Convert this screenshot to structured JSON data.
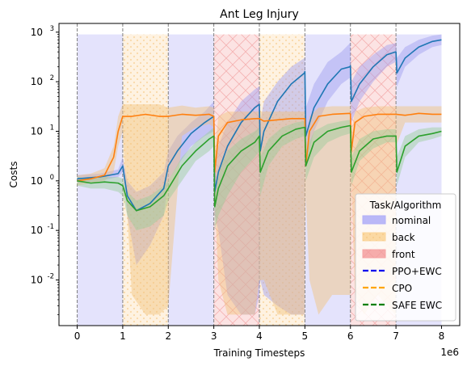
{
  "chart_data": {
    "type": "line",
    "title": "Ant Leg Injury",
    "xlabel": "Training Timesteps",
    "ylabel": "Costs",
    "x_offset_label": "1e6",
    "x_unit": 1000000,
    "xlim": [
      -0.4,
      8.4
    ],
    "ylim": [
      0.0012,
      1500
    ],
    "yscale": "log",
    "x_ticks": [
      0,
      1,
      2,
      3,
      4,
      5,
      6,
      7,
      8
    ],
    "y_ticks": [
      {
        "value": 0.01,
        "label": "10^-2"
      },
      {
        "value": 0.1,
        "label": "10^-1"
      },
      {
        "value": 1,
        "label": "10^0"
      },
      {
        "value": 10,
        "label": "10^1"
      },
      {
        "value": 100,
        "label": "10^2"
      },
      {
        "value": 1000,
        "label": "10^3"
      }
    ],
    "task_boundaries": [
      0,
      1,
      2,
      3,
      4,
      5,
      6,
      7
    ],
    "task_regions": [
      {
        "task": "nominal",
        "x0": 0,
        "x1": 1
      },
      {
        "task": "back",
        "x0": 1,
        "x1": 2
      },
      {
        "task": "nominal",
        "x0": 2,
        "x1": 3
      },
      {
        "task": "front",
        "x0": 3,
        "x1": 4
      },
      {
        "task": "back",
        "x0": 4,
        "x1": 5
      },
      {
        "task": "nominal",
        "x0": 5,
        "x1": 6
      },
      {
        "task": "front",
        "x0": 6,
        "x1": 7
      },
      {
        "task": "nominal",
        "x0": 7,
        "x1": 8
      }
    ],
    "region_top": 900,
    "legend": {
      "title": "Task/Algorithm",
      "placement": "lower right",
      "tasks": [
        {
          "name": "nominal",
          "color": "#b3b0f7"
        },
        {
          "name": "back",
          "color": "#fbd59a"
        },
        {
          "name": "front",
          "color": "#f5a3a3"
        }
      ],
      "algorithms": [
        {
          "name": "PPO+EWC",
          "color": "#0000ee"
        },
        {
          "name": "CPO",
          "color": "#ffa500"
        },
        {
          "name": "SAFE EWC",
          "color": "#007f00"
        }
      ]
    },
    "series": [
      {
        "color": "#1f77b4",
        "band_color": "#9d9bf0",
        "x": [
          0,
          0.5,
          0.9,
          1.0,
          1.1,
          1.3,
          1.6,
          1.9,
          2.0,
          2.2,
          2.5,
          2.8,
          3.0,
          3.02,
          3.1,
          3.3,
          3.6,
          3.9,
          4.0,
          4.02,
          4.1,
          4.4,
          4.7,
          4.99,
          5.0,
          5.02,
          5.2,
          5.5,
          5.8,
          5.99,
          6.0,
          6.02,
          6.2,
          6.5,
          6.8,
          6.99,
          7.0,
          7.02,
          7.2,
          7.5,
          7.8,
          8.0
        ],
        "y": [
          1.1,
          1.2,
          1.4,
          2.0,
          0.5,
          0.25,
          0.35,
          0.7,
          2.0,
          4,
          9,
          15,
          20,
          0.6,
          1.5,
          5,
          15,
          30,
          35,
          4,
          10,
          40,
          90,
          150,
          160,
          8,
          30,
          90,
          180,
          200,
          210,
          40,
          90,
          200,
          350,
          400,
          400,
          150,
          300,
          500,
          650,
          700
        ],
        "lower": [
          0.9,
          1.0,
          1.2,
          1.5,
          0.2,
          0.02,
          0.05,
          0.2,
          1.0,
          2,
          5,
          8,
          10,
          0.2,
          0.1,
          0.005,
          0.002,
          0.002,
          0.005,
          0.01,
          0.005,
          0.003,
          0.002,
          0.002,
          20,
          2,
          10,
          40,
          90,
          120,
          150,
          15,
          40,
          100,
          200,
          250,
          250,
          80,
          200,
          350,
          500,
          550
        ],
        "upper": [
          1.3,
          1.4,
          1.7,
          3.0,
          1.0,
          0.6,
          0.8,
          1.5,
          4,
          8,
          15,
          25,
          40,
          2,
          5,
          15,
          40,
          70,
          80,
          15,
          40,
          100,
          200,
          300,
          300,
          30,
          90,
          250,
          400,
          600,
          600,
          100,
          200,
          350,
          550,
          600,
          600,
          300,
          500,
          700,
          850,
          900
        ]
      },
      {
        "color": "#ff7f0e",
        "band_color": "#f2c07a",
        "x": [
          0,
          0.3,
          0.6,
          0.8,
          0.9,
          1.0,
          1.2,
          1.5,
          1.8,
          2.0,
          2.3,
          2.6,
          2.9,
          3.0,
          3.02,
          3.1,
          3.3,
          3.6,
          3.9,
          4.0,
          4.1,
          4.4,
          4.7,
          4.99,
          5.0,
          5.02,
          5.1,
          5.3,
          5.6,
          5.99,
          6.0,
          6.02,
          6.1,
          6.3,
          6.6,
          6.99,
          7.0,
          7.2,
          7.5,
          7.8,
          8.0
        ],
        "y": [
          1.0,
          1.1,
          1.3,
          3,
          10,
          20,
          20,
          22,
          20,
          20,
          22,
          21,
          22,
          20,
          1.5,
          8,
          15,
          17,
          18,
          18,
          16,
          17,
          18,
          18,
          18,
          2,
          10,
          20,
          22,
          23,
          22,
          4,
          15,
          20,
          22,
          22,
          22,
          21,
          23,
          22,
          22
        ],
        "lower": [
          0.8,
          0.9,
          1.0,
          1.5,
          5,
          10,
          0.005,
          0.002,
          0.002,
          0.003,
          8,
          12,
          14,
          12,
          0.4,
          0.01,
          0.002,
          0.002,
          0.002,
          0.01,
          0.01,
          0.002,
          0.002,
          0.002,
          0.1,
          0.5,
          0.01,
          0.002,
          0.005,
          0.005,
          0.005,
          1,
          0.005,
          0.002,
          0.005,
          0.002,
          5,
          15,
          15,
          15,
          15
        ],
        "upper": [
          1.3,
          1.4,
          1.8,
          5,
          20,
          35,
          35,
          35,
          35,
          30,
          33,
          30,
          32,
          30,
          4,
          20,
          25,
          25,
          25,
          25,
          25,
          25,
          25,
          25,
          25,
          5,
          20,
          30,
          32,
          32,
          32,
          10,
          25,
          30,
          32,
          32,
          32,
          32,
          32,
          32,
          32
        ]
      },
      {
        "color": "#2ca02c",
        "band_color": "#99cc99",
        "x": [
          0,
          0.3,
          0.6,
          0.9,
          1.0,
          1.1,
          1.3,
          1.6,
          1.9,
          2.0,
          2.3,
          2.6,
          2.9,
          3.0,
          3.02,
          3.1,
          3.3,
          3.6,
          3.9,
          4.0,
          4.02,
          4.2,
          4.5,
          4.8,
          4.99,
          5.0,
          5.02,
          5.2,
          5.5,
          5.8,
          5.99,
          6.0,
          6.02,
          6.2,
          6.5,
          6.8,
          6.99,
          7.0,
          7.02,
          7.2,
          7.5,
          7.8,
          8.0
        ],
        "y": [
          1.0,
          0.9,
          0.95,
          0.9,
          0.8,
          0.4,
          0.25,
          0.3,
          0.5,
          0.7,
          2,
          4,
          7,
          8,
          0.3,
          0.7,
          2,
          4,
          6,
          8,
          1.5,
          4,
          8,
          11,
          12,
          12,
          2,
          6,
          10,
          12,
          13,
          13,
          1.5,
          4,
          7,
          8,
          8,
          8,
          1.5,
          5,
          8,
          9,
          10
        ],
        "lower": [
          0.8,
          0.7,
          0.7,
          0.6,
          0.5,
          0.2,
          0.1,
          0.12,
          0.2,
          0.4,
          1,
          2.5,
          4,
          5,
          0.1,
          0.2,
          0.5,
          1.5,
          3,
          4,
          0.5,
          2,
          5,
          7,
          8,
          8,
          1,
          3,
          6,
          8,
          9,
          9,
          0.8,
          2.5,
          4.5,
          6,
          6,
          6,
          0.8,
          3,
          6,
          7,
          8
        ],
        "upper": [
          1.2,
          1.1,
          1.2,
          1.2,
          1.1,
          0.6,
          0.4,
          0.5,
          0.8,
          1.0,
          3,
          6,
          10,
          12,
          0.6,
          1.5,
          4,
          7,
          10,
          12,
          3,
          7,
          12,
          15,
          16,
          16,
          4,
          10,
          14,
          16,
          17,
          17,
          3,
          7,
          10,
          11,
          11,
          11,
          3,
          8,
          11,
          12,
          12
        ]
      }
    ]
  }
}
